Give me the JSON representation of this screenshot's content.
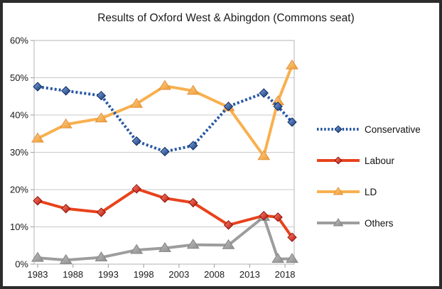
{
  "window": {
    "frame_color": "#2c2c2c",
    "background": "#ffffff"
  },
  "chart_data": {
    "type": "line",
    "title": "Results of Oxford West & Abingdon (Commons seat)",
    "x": [
      1983,
      1987,
      1992,
      1997,
      2001,
      2005,
      2010,
      2015,
      2017,
      2019
    ],
    "series": [
      {
        "id": "conservative",
        "name": "Conservative",
        "color": "#2757a4",
        "line_style": "dotted",
        "marker": "diamond",
        "marker_light": "#7fa8e8",
        "marker_dark": "#16366e",
        "marker_edge": "#0d2a5e",
        "values": [
          47.6,
          46.5,
          45.2,
          33.0,
          30.2,
          31.8,
          42.3,
          45.9,
          42.3,
          38.1
        ]
      },
      {
        "id": "labour",
        "name": "Labour",
        "color": "#e8421c",
        "line_style": "solid",
        "marker": "diamond",
        "marker_light": "#f98b66",
        "marker_dark": "#bb0f0f",
        "marker_edge": "#8c120e",
        "values": [
          17.0,
          14.9,
          13.9,
          20.2,
          17.7,
          16.5,
          10.5,
          13.0,
          12.6,
          7.2
        ]
      },
      {
        "id": "ld",
        "name": "LD",
        "color": "#f8b04e",
        "line_style": "solid",
        "marker": "triangle",
        "marker_light": "#fbd08e",
        "marker_dark": "#f09b2d",
        "marker_edge": "#e29140",
        "values": [
          33.7,
          37.5,
          39.1,
          43.0,
          47.8,
          46.5,
          42.1,
          29.0,
          43.7,
          53.3
        ]
      },
      {
        "id": "others",
        "name": "Others",
        "color": "#9d9d9d",
        "line_style": "solid",
        "marker": "triangle",
        "marker_light": "#bdbdbd",
        "marker_dark": "#8f8f8f",
        "marker_edge": "#848484",
        "values": [
          1.7,
          1.1,
          1.8,
          3.8,
          4.3,
          5.2,
          5.1,
          12.7,
          1.4,
          1.4
        ]
      }
    ],
    "xticks": [
      "1983",
      "1988",
      "1993",
      "1998",
      "2003",
      "2008",
      "2013",
      "2018"
    ],
    "xtick_values": [
      1983,
      1988,
      1993,
      1998,
      2003,
      2008,
      2013,
      2018
    ],
    "yticks": [
      "0%",
      "10%",
      "20%",
      "30%",
      "40%",
      "50%",
      "60%"
    ],
    "ytick_values": [
      0,
      10,
      20,
      30,
      40,
      50,
      60
    ],
    "xlim": [
      1982.5,
      2019.3
    ],
    "ylim": [
      0,
      60
    ],
    "grid": "horizontal",
    "legend_position": "right",
    "axis_color": "#b5b5b5",
    "grid_color": "#c9c9c9",
    "tick_color": "#9a9a9a",
    "text_color": "#1a1a1a"
  }
}
